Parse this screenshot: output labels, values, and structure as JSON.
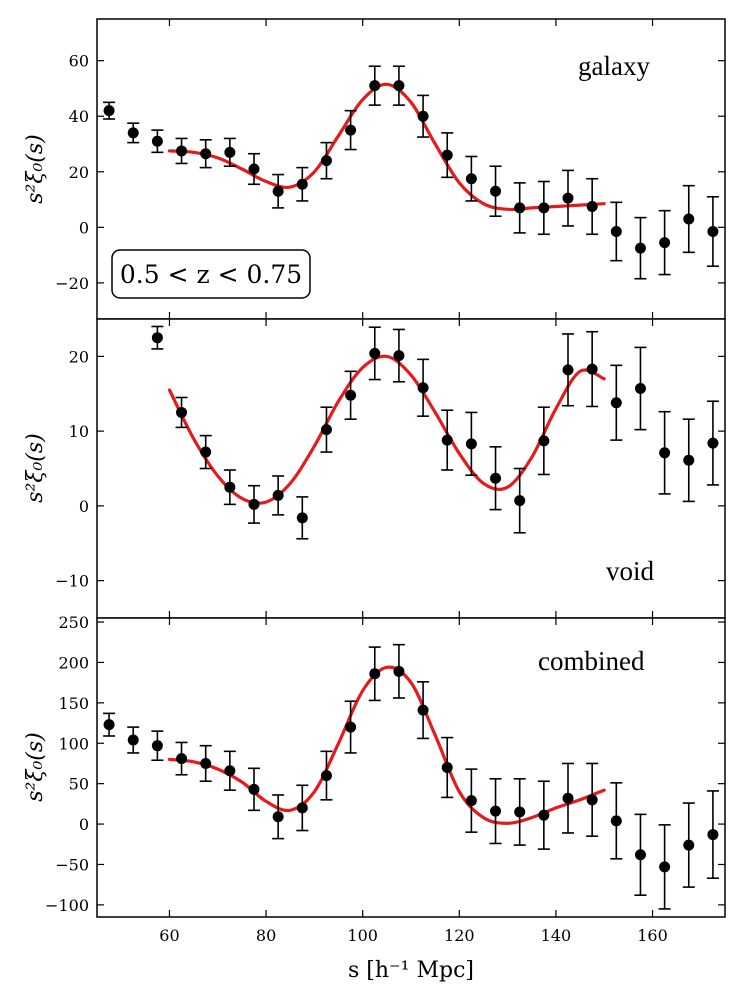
{
  "chart_data": {
    "type": "scatter",
    "layout": "three vertically stacked panels sharing x axis",
    "xlabel": "s [h⁻¹ Mpc]",
    "xlim": [
      45,
      175
    ],
    "xticks": [
      60,
      80,
      100,
      120,
      140,
      160
    ],
    "annotation": "0.5 < z < 0.75",
    "panels": [
      {
        "label": "galaxy",
        "ylabel": "s²ξ₀(s)",
        "ylim": [
          -33,
          75
        ],
        "yticks": [
          -20,
          0,
          20,
          40,
          60
        ],
        "points": {
          "x": [
            47.5,
            52.5,
            57.5,
            62.5,
            67.5,
            72.5,
            77.5,
            82.5,
            87.5,
            92.5,
            97.5,
            102.5,
            107.5,
            112.5,
            117.5,
            122.5,
            127.5,
            132.5,
            137.5,
            142.5,
            147.5,
            152.5,
            157.5,
            162.5,
            167.5,
            172.5
          ],
          "y": [
            42,
            34,
            31,
            27.5,
            26.5,
            27,
            21,
            13,
            15.5,
            24,
            35,
            51,
            51,
            40,
            26,
            17.5,
            13,
            7,
            7,
            10.5,
            7.5,
            -1.5,
            -7.5,
            -5.5,
            3,
            -1.5
          ],
          "err": [
            3,
            3.5,
            4,
            4.5,
            5,
            5,
            5.5,
            6,
            6,
            6.5,
            7,
            7,
            7,
            7.5,
            8,
            8,
            9,
            9,
            9.5,
            10,
            10,
            10.5,
            11,
            11.5,
            12,
            12.5
          ]
        },
        "model": {
          "x": [
            60,
            65,
            70,
            75,
            80,
            85,
            90,
            95,
            100,
            105,
            110,
            115,
            120,
            125,
            130,
            135,
            140,
            145,
            150
          ],
          "y": [
            27.5,
            27,
            25,
            21,
            16.5,
            14.5,
            20,
            33,
            46,
            51.5,
            45,
            30,
            16,
            8.5,
            6.5,
            7,
            7.5,
            8,
            8.5
          ]
        }
      },
      {
        "label": "void",
        "ylabel": "s²ξ₀(s)",
        "ylim": [
          -15,
          25
        ],
        "yticks": [
          -10,
          0,
          10,
          20
        ],
        "points": {
          "x": [
            57.5,
            62.5,
            67.5,
            72.5,
            77.5,
            82.5,
            87.5,
            92.5,
            97.5,
            102.5,
            107.5,
            112.5,
            117.5,
            122.5,
            127.5,
            132.5,
            137.5,
            142.5,
            147.5,
            152.5,
            157.5,
            162.5,
            167.5,
            172.5
          ],
          "y": [
            22.5,
            12.5,
            7.2,
            2.5,
            0.2,
            1.4,
            -1.6,
            10.2,
            14.8,
            20.4,
            20.1,
            15.8,
            8.8,
            8.3,
            3.7,
            0.7,
            8.7,
            18.2,
            18.3,
            13.8,
            15.7,
            7.1,
            6.1,
            8.4
          ],
          "err": [
            1.5,
            2,
            2.2,
            2.3,
            2.5,
            2.6,
            2.8,
            3,
            3.2,
            3.5,
            3.5,
            3.8,
            4,
            4.2,
            4.2,
            4.3,
            4.5,
            4.8,
            5,
            5,
            5.5,
            5.5,
            5.5,
            5.6
          ]
        },
        "model": {
          "x": [
            60,
            65,
            70,
            75,
            80,
            85,
            90,
            95,
            100,
            105,
            110,
            115,
            120,
            125,
            130,
            135,
            140,
            145,
            150
          ],
          "y": [
            15.5,
            9,
            4,
            1,
            0.5,
            3,
            8,
            14,
            18.5,
            20,
            17.5,
            12.5,
            7,
            3,
            2.5,
            6.5,
            13,
            18,
            17
          ]
        }
      },
      {
        "label": "combined",
        "ylabel": "s²ξ₀(s)",
        "ylim": [
          -115,
          255
        ],
        "yticks": [
          -100,
          -50,
          0,
          50,
          100,
          150,
          200,
          250
        ],
        "points": {
          "x": [
            47.5,
            52.5,
            57.5,
            62.5,
            67.5,
            72.5,
            77.5,
            82.5,
            87.5,
            92.5,
            97.5,
            102.5,
            107.5,
            112.5,
            117.5,
            122.5,
            127.5,
            132.5,
            137.5,
            142.5,
            147.5,
            152.5,
            157.5,
            162.5,
            167.5,
            172.5
          ],
          "y": [
            123,
            104,
            97,
            81,
            75,
            66,
            43,
            9,
            20,
            60,
            120,
            186,
            189,
            141,
            70,
            29,
            16,
            15,
            11,
            32,
            30,
            4,
            -38,
            -53,
            -26,
            -13
          ],
          "err": [
            14,
            16,
            18,
            20,
            22,
            24,
            26,
            27,
            28,
            30,
            32,
            33,
            33,
            35,
            37,
            39,
            40,
            41,
            42,
            43,
            45,
            47,
            50,
            52,
            52,
            54
          ]
        },
        "model": {
          "x": [
            60,
            65,
            70,
            75,
            80,
            85,
            90,
            95,
            100,
            105,
            110,
            115,
            120,
            125,
            130,
            135,
            140,
            145,
            150
          ],
          "y": [
            80,
            77,
            68,
            52,
            28,
            17,
            40,
            100,
            165,
            194,
            175,
            110,
            40,
            8,
            1,
            8,
            20,
            30,
            42
          ]
        }
      }
    ]
  }
}
